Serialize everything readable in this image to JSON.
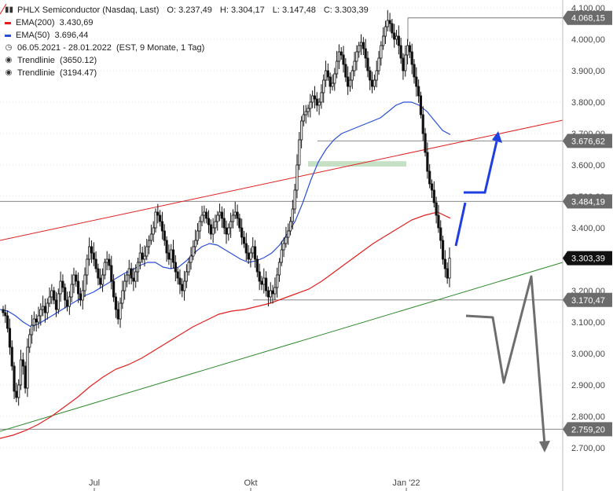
{
  "header": {
    "title": "PHLX Semiconductor (Nasdaq, Last)",
    "ohlc": {
      "o_label": "O:",
      "o": "3.237,49",
      "h_label": "H:",
      "h": "3.304,17",
      "l_label": "L:",
      "l": "3.147,48",
      "c_label": "C:",
      "c": "3.303,39"
    },
    "ema200_label": "EMA(200)",
    "ema200_value": "3.430,69",
    "ema50_label": "EMA(50)",
    "ema50_value": "3.696,44",
    "range": "06.05.2021 - 28.01.2022",
    "range_detail": "(EST, 9 Monate, 1 Tag)",
    "trend1_label": "Trendlinie",
    "trend1_value": "(3650.12)",
    "trend2_label": "Trendlinie",
    "trend2_value": "(3194.47)"
  },
  "colors": {
    "ema200": "#e02020",
    "ema50": "#2a4fd6",
    "trend_upper": "#e02020",
    "trend_lower": "#2f8a2f",
    "candle": "#111111",
    "support_zone": "#c5e0c5",
    "forecast_blue": "#1f3fe0",
    "forecast_gray": "#6e6e6e",
    "grid": "#c8c8c8"
  },
  "chart_data": {
    "type": "candlestick",
    "x_labels": [
      "Jul",
      "Okt",
      "Jan '22"
    ],
    "y_ticks": [
      "4.100,00",
      "4.000,00",
      "3.900,00",
      "3.800,00",
      "3.700,00",
      "3.600,00",
      "3.500,00",
      "3.400,00",
      "3.300,00",
      "3.200,00",
      "3.100,00",
      "3.000,00",
      "2.900,00",
      "2.800,00",
      "2.700,00"
    ],
    "ylim": [
      2700,
      4100
    ],
    "price_tags": [
      {
        "value": 4068.15,
        "label": "4.068,15",
        "style": "gray"
      },
      {
        "value": 3676.62,
        "label": "3.676,62",
        "style": "gray"
      },
      {
        "value": 3484.19,
        "label": "3.484,19",
        "style": "gray"
      },
      {
        "value": 3303.39,
        "label": "3.303,39",
        "style": "black"
      },
      {
        "value": 3170.47,
        "label": "3.170,47",
        "style": "gray"
      },
      {
        "value": 2759.2,
        "label": "2.759,20",
        "style": "gray"
      }
    ],
    "closes": [
      3130,
      3120,
      3080,
      3020,
      2960,
      2880,
      2860,
      2900,
      2980,
      2960,
      2890,
      3020,
      3060,
      3090,
      3110,
      3100,
      3120,
      3140,
      3150,
      3130,
      3160,
      3180,
      3200,
      3170,
      3140,
      3190,
      3230,
      3210,
      3170,
      3150,
      3180,
      3220,
      3250,
      3230,
      3190,
      3170,
      3200,
      3250,
      3300,
      3340,
      3320,
      3300,
      3270,
      3240,
      3220,
      3250,
      3290,
      3300,
      3280,
      3230,
      3180,
      3140,
      3110,
      3160,
      3200,
      3230,
      3250,
      3270,
      3240,
      3230,
      3260,
      3290,
      3320,
      3300,
      3310,
      3340,
      3360,
      3380,
      3400,
      3450,
      3440,
      3420,
      3390,
      3360,
      3320,
      3300,
      3330,
      3290,
      3260,
      3240,
      3220,
      3200,
      3230,
      3260,
      3290,
      3310,
      3340,
      3360,
      3390,
      3420,
      3440,
      3450,
      3430,
      3410,
      3380,
      3400,
      3420,
      3440,
      3450,
      3430,
      3400,
      3380,
      3400,
      3420,
      3440,
      3450,
      3430,
      3400,
      3370,
      3350,
      3320,
      3300,
      3320,
      3340,
      3300,
      3260,
      3230,
      3220,
      3240,
      3200,
      3180,
      3200,
      3190,
      3210,
      3250,
      3290,
      3330,
      3350,
      3370,
      3390,
      3420,
      3460,
      3520,
      3600,
      3680,
      3740,
      3760,
      3770,
      3780,
      3800,
      3820,
      3810,
      3790,
      3800,
      3830,
      3870,
      3900,
      3880,
      3850,
      3860,
      3890,
      3930,
      3960,
      3950,
      3920,
      3880,
      3850,
      3870,
      3900,
      3930,
      3960,
      3980,
      3990,
      3970,
      3940,
      3900,
      3870,
      3850,
      3870,
      3900,
      3940,
      3980,
      4010,
      4040,
      4060,
      4050,
      4020,
      4000,
      4010,
      3980,
      3940,
      3900,
      3950,
      3980,
      3960,
      3920,
      3880,
      3850,
      3820,
      3760,
      3700,
      3640,
      3580,
      3540,
      3520,
      3480,
      3440,
      3400,
      3360,
      3300,
      3270,
      3240,
      3303.39
    ],
    "ema50": [
      3140,
      3135,
      3120,
      3100,
      3085,
      3095,
      3110,
      3125,
      3140,
      3155,
      3170,
      3185,
      3195,
      3210,
      3225,
      3240,
      3255,
      3265,
      3280,
      3290,
      3290,
      3275,
      3270,
      3275,
      3295,
      3320,
      3340,
      3350,
      3345,
      3330,
      3315,
      3300,
      3290,
      3295,
      3305,
      3320,
      3345,
      3380,
      3420,
      3480,
      3550,
      3610,
      3650,
      3680,
      3700,
      3710,
      3720,
      3730,
      3740,
      3750,
      3770,
      3790,
      3800,
      3800,
      3790,
      3770,
      3740,
      3710,
      3696.44
    ],
    "ema200": [
      2730,
      2740,
      2755,
      2775,
      2800,
      2830,
      2860,
      2895,
      2925,
      2950,
      2965,
      2985,
      3010,
      3035,
      3060,
      3085,
      3105,
      3125,
      3135,
      3140,
      3150,
      3160,
      3175,
      3190,
      3205,
      3230,
      3260,
      3290,
      3320,
      3350,
      3375,
      3400,
      3425,
      3440,
      3450,
      3430.69
    ],
    "trendlines": [
      {
        "name": "Trendlinie",
        "value": 3650.12,
        "color": "red"
      },
      {
        "name": "Trendlinie",
        "value": 3194.47,
        "color": "green"
      }
    ],
    "support_zone": [
      3595,
      3612
    ],
    "legend_position": "top-left",
    "grid": true
  }
}
